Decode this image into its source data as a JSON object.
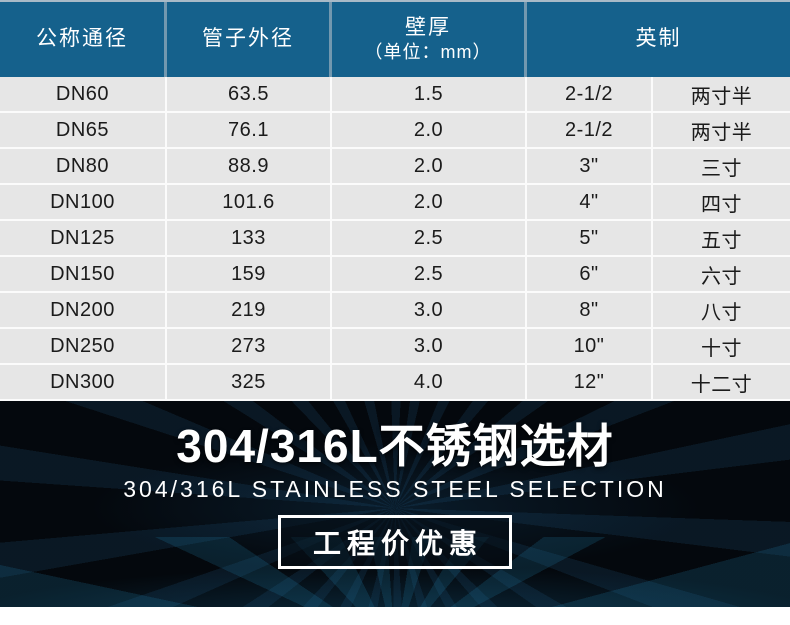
{
  "table": {
    "headers": {
      "nominal_diameter": "公称通径",
      "outer_diameter": "管子外径",
      "wall_thickness": "壁厚",
      "wall_thickness_unit": "（单位：mm）",
      "imperial": "英制"
    },
    "rows": [
      {
        "dn": "DN60",
        "od": "63.5",
        "wall": "1.5",
        "imperial": "2-1/2",
        "imperial_cn": "两寸半"
      },
      {
        "dn": "DN65",
        "od": "76.1",
        "wall": "2.0",
        "imperial": "2-1/2",
        "imperial_cn": "两寸半"
      },
      {
        "dn": "DN80",
        "od": "88.9",
        "wall": "2.0",
        "imperial": "3\"",
        "imperial_cn": "三寸"
      },
      {
        "dn": "DN100",
        "od": "101.6",
        "wall": "2.0",
        "imperial": "4\"",
        "imperial_cn": "四寸"
      },
      {
        "dn": "DN125",
        "od": "133",
        "wall": "2.5",
        "imperial": "5\"",
        "imperial_cn": "五寸"
      },
      {
        "dn": "DN150",
        "od": "159",
        "wall": "2.5",
        "imperial": "6\"",
        "imperial_cn": "六寸"
      },
      {
        "dn": "DN200",
        "od": "219",
        "wall": "3.0",
        "imperial": "8\"",
        "imperial_cn": "八寸"
      },
      {
        "dn": "DN250",
        "od": "273",
        "wall": "3.0",
        "imperial": "10\"",
        "imperial_cn": "十寸"
      },
      {
        "dn": "DN300",
        "od": "325",
        "wall": "4.0",
        "imperial": "12\"",
        "imperial_cn": "十二寸"
      }
    ]
  },
  "banner": {
    "title": "304/316L不锈钢选材",
    "subtitle": "304/316L STAINLESS STEEL SELECTION",
    "badge": "工程价优惠"
  },
  "colors": {
    "header_bg": "#15618c",
    "header_divider": "#7298af",
    "row_bg": "#e6e6e6",
    "row_gap": "#fbfbfb",
    "banner_bg": "#04080d",
    "banner_ray": "#26699b"
  }
}
